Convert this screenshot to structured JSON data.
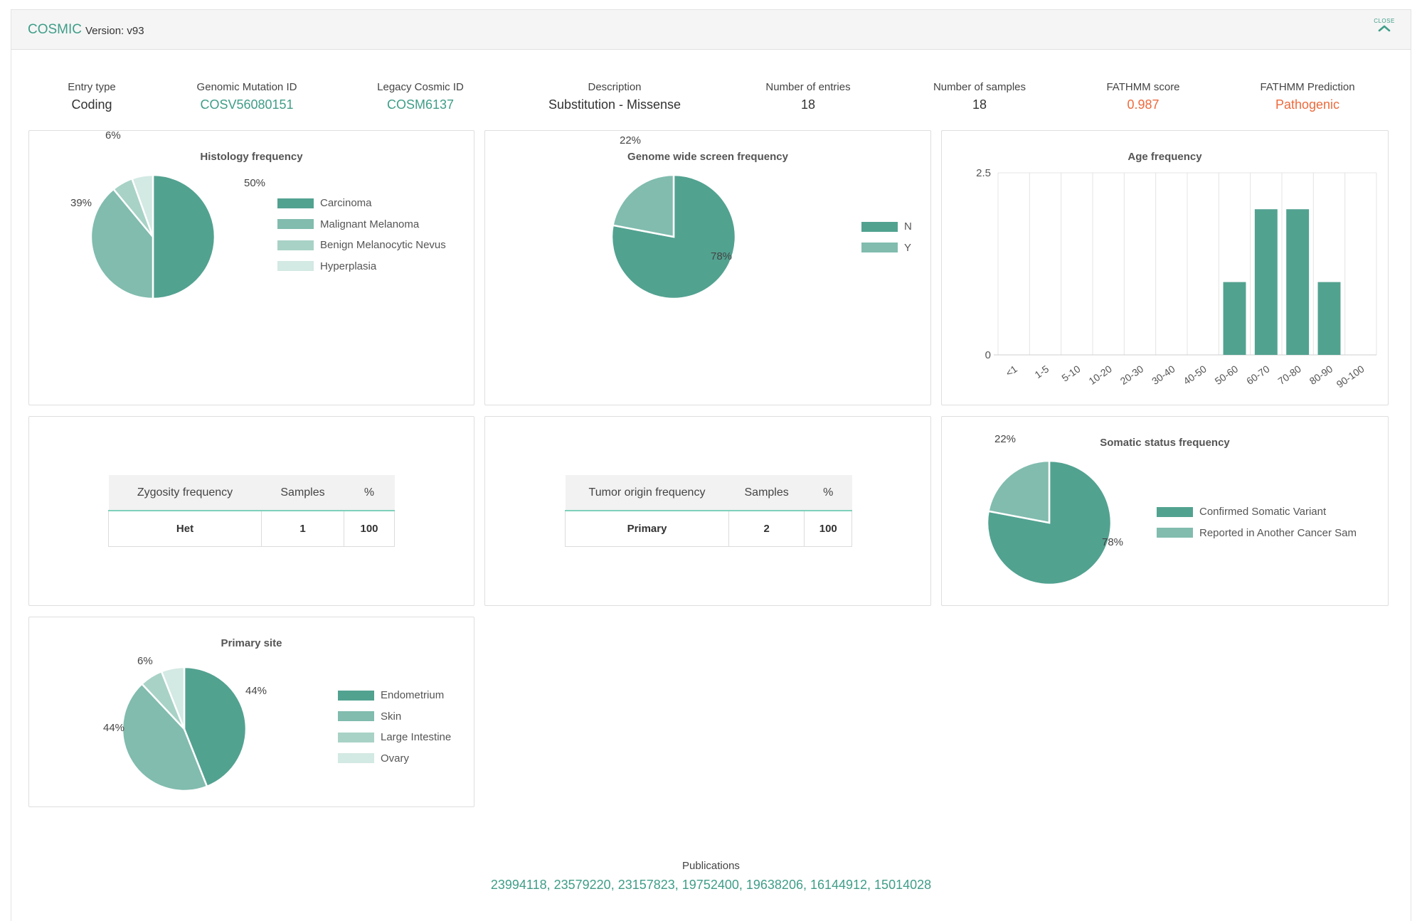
{
  "header": {
    "brand": "COSMIC",
    "version": "Version: v93",
    "close_label": "CLOSE"
  },
  "stats": {
    "entry_type": {
      "label": "Entry type",
      "value": "Coding"
    },
    "genomic_mutation_id": {
      "label": "Genomic Mutation ID",
      "value": "COSV56080151"
    },
    "legacy_cosmic_id": {
      "label": "Legacy Cosmic ID",
      "value": "COSM6137"
    },
    "description": {
      "label": "Description",
      "value": "Substitution - Missense"
    },
    "number_of_entries": {
      "label": "Number of entries",
      "value": "18"
    },
    "number_of_samples": {
      "label": "Number of samples",
      "value": "18"
    },
    "fathmm_score": {
      "label": "FATHMM score",
      "value": "0.987"
    },
    "fathmm_prediction": {
      "label": "FATHMM Prediction",
      "value": "Pathogenic"
    }
  },
  "colors": {
    "c1": "#52a290",
    "c2": "#81bcae",
    "c3": "#a8d2c6",
    "c4": "#d3e9e3",
    "link": "#3f9d88",
    "alert": "#ee6a3c"
  },
  "zygosity_table": {
    "headers": [
      "Zygosity frequency",
      "Samples",
      "%"
    ],
    "rows": [
      [
        "Het",
        "1",
        "100"
      ]
    ]
  },
  "tumor_table": {
    "headers": [
      "Tumor origin frequency",
      "Samples",
      "%"
    ],
    "rows": [
      [
        "Primary",
        "2",
        "100"
      ]
    ]
  },
  "publications": {
    "label": "Publications",
    "list": "23994118, 23579220, 23157823, 19752400, 19638206, 16144912, 15014028"
  },
  "chart_data": [
    {
      "id": "histology",
      "type": "pie",
      "title": "Histology frequency",
      "categories": [
        "Carcinoma",
        "Malignant Melanoma",
        "Benign Melanocytic Nevus",
        "Hyperplasia"
      ],
      "values": [
        50,
        39,
        5.5,
        5.5
      ],
      "data_labels": [
        "50%",
        "39%",
        "6%",
        ""
      ],
      "legend_position": "right"
    },
    {
      "id": "genome",
      "type": "pie",
      "title": "Genome wide screen frequency",
      "categories": [
        "N",
        "Y"
      ],
      "values": [
        78,
        22
      ],
      "data_labels": [
        "78%",
        "22%"
      ],
      "legend_position": "right"
    },
    {
      "id": "age",
      "type": "bar",
      "title": "Age frequency",
      "categories": [
        "<1",
        "1-5",
        "5-10",
        "10-20",
        "20-30",
        "30-40",
        "40-50",
        "50-60",
        "60-70",
        "70-80",
        "80-90",
        "90-100"
      ],
      "values": [
        0,
        0,
        0,
        0,
        0,
        0,
        0,
        1,
        2,
        2,
        1,
        0
      ],
      "ylim": [
        0,
        2.5
      ],
      "yticks": [
        "0",
        "2.5"
      ],
      "xlabel": "",
      "ylabel": "",
      "grid": true
    },
    {
      "id": "somatic",
      "type": "pie",
      "title": "Somatic status frequency",
      "categories": [
        "Confirmed Somatic Variant",
        "Reported in Another Cancer Sam"
      ],
      "values": [
        78,
        22
      ],
      "data_labels": [
        "78%",
        "22%"
      ],
      "legend_position": "right"
    },
    {
      "id": "primary",
      "type": "pie",
      "title": "Primary site",
      "categories": [
        "Endometrium",
        "Skin",
        "Large Intestine",
        "Ovary"
      ],
      "values": [
        44,
        44,
        6,
        6
      ],
      "data_labels": [
        "44%",
        "44%",
        "6%",
        ""
      ],
      "legend_position": "right"
    }
  ]
}
